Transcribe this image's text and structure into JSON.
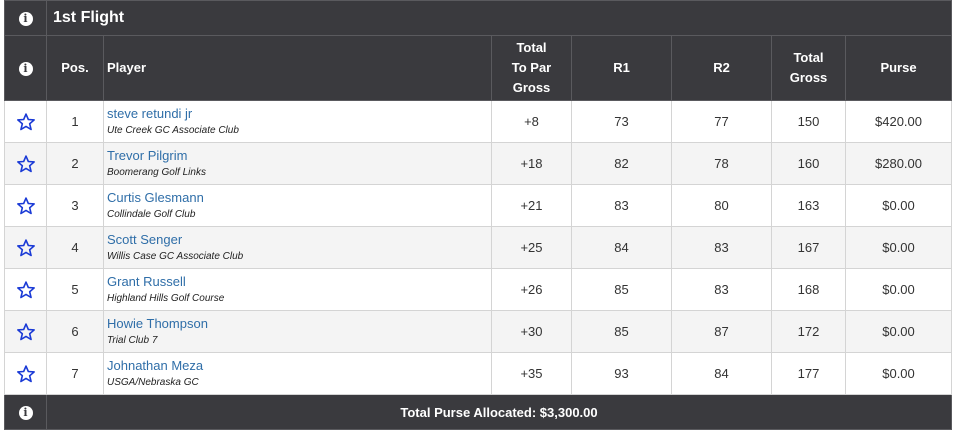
{
  "flight": {
    "title": "1st Flight"
  },
  "columns": {
    "pos": "Pos.",
    "player": "Player",
    "to_par": [
      "Total",
      "To Par",
      "Gross"
    ],
    "r1": "R1",
    "r2": "R2",
    "total_gross": [
      "Total",
      "Gross"
    ],
    "purse": "Purse"
  },
  "rows": [
    {
      "pos": "1",
      "name": "steve retundi jr",
      "club": "Ute Creek GC Associate Club",
      "to_par": "+8",
      "r1": "73",
      "r2": "77",
      "total": "150",
      "purse": "$420.00"
    },
    {
      "pos": "2",
      "name": "Trevor Pilgrim",
      "club": "Boomerang Golf Links",
      "to_par": "+18",
      "r1": "82",
      "r2": "78",
      "total": "160",
      "purse": "$280.00"
    },
    {
      "pos": "3",
      "name": "Curtis Glesmann",
      "club": "Collindale Golf Club",
      "to_par": "+21",
      "r1": "83",
      "r2": "80",
      "total": "163",
      "purse": "$0.00"
    },
    {
      "pos": "4",
      "name": "Scott Senger",
      "club": "Willis Case GC Associate Club",
      "to_par": "+25",
      "r1": "84",
      "r2": "83",
      "total": "167",
      "purse": "$0.00"
    },
    {
      "pos": "5",
      "name": "Grant Russell",
      "club": "Highland Hills Golf Course",
      "to_par": "+26",
      "r1": "85",
      "r2": "83",
      "total": "168",
      "purse": "$0.00"
    },
    {
      "pos": "6",
      "name": "Howie Thompson",
      "club": "Trial Club 7",
      "to_par": "+30",
      "r1": "85",
      "r2": "87",
      "total": "172",
      "purse": "$0.00"
    },
    {
      "pos": "7",
      "name": "Johnathan Meza",
      "club": "USGA/Nebraska GC",
      "to_par": "+35",
      "r1": "93",
      "r2": "84",
      "total": "177",
      "purse": "$0.00"
    }
  ],
  "footer": {
    "total_purse": "Total Purse Allocated: $3,300.00"
  },
  "icons": {
    "info": "info-icon",
    "favorite": "star-outline-icon"
  },
  "colors": {
    "header_bg": "#3a3a3e",
    "link": "#2f6ea8",
    "star": "#1a3ad6"
  }
}
